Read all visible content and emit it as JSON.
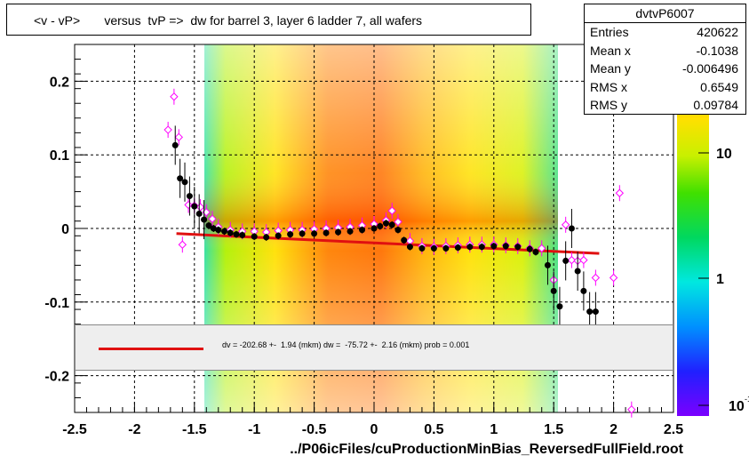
{
  "title": "<v - vP>       versus  tvP =>  dw for barrel 3, layer 6 ladder 7, all wafers",
  "stats": {
    "name": "dvtvP6007",
    "rows": [
      {
        "label": "Entries",
        "value": "420622"
      },
      {
        "label": "Mean x",
        "value": "-0.1038"
      },
      {
        "label": "Mean y",
        "value": "-0.006496"
      },
      {
        "label": "RMS x",
        "value": "0.6549"
      },
      {
        "label": "RMS y",
        "value": "0.09784"
      }
    ]
  },
  "fit_text": "dv = -202.68 +-  1.94 (mkm) dw =  -75.72 +-  2.16 (mkm) prob = 0.001",
  "x_title": "../P06icFiles/cuProductionMinBias_ReversedFullField.root",
  "colors": {
    "fit": "#e01010",
    "profile": "#000000",
    "profile2": "#ff00ff"
  },
  "chart_data": {
    "type": "heatmap",
    "xlim": [
      -2.5,
      2.5
    ],
    "ylim": [
      -0.25,
      0.25
    ],
    "x_ticks": [
      "-2.5",
      "-2",
      "-1.5",
      "-1",
      "-0.5",
      "0",
      "0.5",
      "1",
      "1.5",
      "2",
      "2.5"
    ],
    "y_ticks": [
      "0.2",
      "0.1",
      "0",
      "-0.1",
      "-0.2"
    ],
    "z_ticks": [
      "10",
      "1",
      "10"
    ],
    "z_tick_note": "-1",
    "grid": true,
    "profile_black": {
      "x": [
        -1.66,
        -1.62,
        -1.58,
        -1.54,
        -1.5,
        -1.46,
        -1.42,
        -1.38,
        -1.34,
        -1.3,
        -1.25,
        -1.2,
        -1.15,
        -1.1,
        -1.0,
        -0.9,
        -0.8,
        -0.7,
        -0.6,
        -0.5,
        -0.4,
        -0.3,
        -0.2,
        -0.1,
        0.0,
        0.05,
        0.1,
        0.15,
        0.2,
        0.25,
        0.3,
        0.4,
        0.5,
        0.6,
        0.7,
        0.8,
        0.9,
        1.0,
        1.1,
        1.2,
        1.3,
        1.35,
        1.45,
        1.5,
        1.55,
        1.6,
        1.65,
        1.7,
        1.75,
        1.8,
        1.85
      ],
      "y": [
        0.113,
        0.068,
        0.063,
        0.044,
        0.03,
        0.02,
        0.012,
        0.004,
        0.0,
        -0.002,
        -0.004,
        -0.006,
        -0.008,
        -0.009,
        -0.011,
        -0.012,
        -0.01,
        -0.008,
        -0.007,
        -0.007,
        -0.006,
        -0.005,
        -0.004,
        -0.002,
        0.0,
        0.003,
        0.007,
        0.005,
        -0.002,
        -0.016,
        -0.025,
        -0.027,
        -0.027,
        -0.027,
        -0.026,
        -0.025,
        -0.025,
        -0.024,
        -0.024,
        -0.025,
        -0.028,
        -0.032,
        -0.05,
        -0.085,
        -0.106,
        -0.044,
        0.0,
        -0.058,
        -0.085,
        -0.113,
        -0.113
      ]
    },
    "profile_magenta": {
      "x": [
        -1.72,
        -1.67,
        -1.63,
        -1.6,
        -1.55,
        -1.5,
        -1.45,
        -1.4,
        -1.35,
        -1.3,
        -1.2,
        -1.1,
        -1.0,
        -0.9,
        -0.8,
        -0.7,
        -0.6,
        -0.5,
        -0.4,
        -0.3,
        -0.2,
        -0.1,
        0.0,
        0.1,
        0.15,
        0.2,
        0.3,
        0.4,
        0.5,
        0.6,
        0.7,
        0.8,
        0.9,
        1.0,
        1.1,
        1.2,
        1.3,
        1.4,
        1.5,
        1.6,
        1.65,
        1.7,
        1.75,
        1.85,
        2.0,
        2.05,
        2.15
      ],
      "y": [
        0.134,
        0.179,
        0.124,
        -0.022,
        0.032,
        0.031,
        0.029,
        0.022,
        0.013,
        0.002,
        -0.002,
        -0.004,
        -0.004,
        -0.005,
        -0.003,
        -0.002,
        -0.002,
        -0.001,
        0.0,
        0.001,
        0.002,
        0.004,
        0.006,
        0.011,
        0.024,
        0.009,
        -0.017,
        -0.024,
        -0.025,
        -0.024,
        -0.023,
        -0.022,
        -0.022,
        -0.022,
        -0.023,
        -0.024,
        -0.027,
        -0.027,
        -0.07,
        0.005,
        -0.043,
        -0.044,
        -0.043,
        -0.067,
        -0.067,
        0.048,
        -0.246
      ]
    },
    "fit_line": {
      "x": [
        -1.65,
        1.88
      ],
      "y": [
        -0.007,
        -0.034
      ]
    }
  }
}
